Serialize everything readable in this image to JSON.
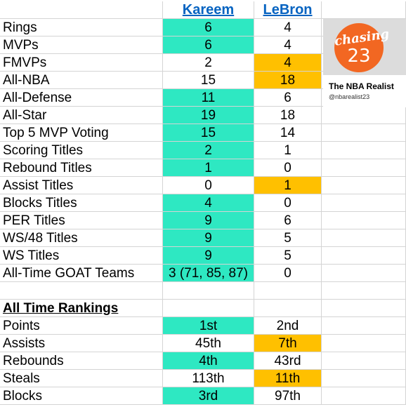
{
  "header": {
    "kareem": "Kareem",
    "lebron": "LeBron"
  },
  "stats": [
    {
      "label": "Rings",
      "kareem": "6",
      "lebron": "4",
      "k_hl": "teal",
      "l_hl": ""
    },
    {
      "label": "MVPs",
      "kareem": "6",
      "lebron": "4",
      "k_hl": "teal",
      "l_hl": ""
    },
    {
      "label": "FMVPs",
      "kareem": "2",
      "lebron": "4",
      "k_hl": "",
      "l_hl": "gold"
    },
    {
      "label": "All-NBA",
      "kareem": "15",
      "lebron": "18",
      "k_hl": "",
      "l_hl": "gold"
    },
    {
      "label": "All-Defense",
      "kareem": "11",
      "lebron": "6",
      "k_hl": "teal",
      "l_hl": ""
    },
    {
      "label": "All-Star",
      "kareem": "19",
      "lebron": "18",
      "k_hl": "teal",
      "l_hl": ""
    },
    {
      "label": "Top 5 MVP Voting",
      "kareem": "15",
      "lebron": "14",
      "k_hl": "teal",
      "l_hl": ""
    },
    {
      "label": "Scoring Titles",
      "kareem": "2",
      "lebron": "1",
      "k_hl": "teal",
      "l_hl": ""
    },
    {
      "label": "Rebound Titles",
      "kareem": "1",
      "lebron": "0",
      "k_hl": "teal",
      "l_hl": ""
    },
    {
      "label": "Assist Titles",
      "kareem": "0",
      "lebron": "1",
      "k_hl": "",
      "l_hl": "gold"
    },
    {
      "label": "Blocks Titles",
      "kareem": "4",
      "lebron": "0",
      "k_hl": "teal",
      "l_hl": ""
    },
    {
      "label": "PER Titles",
      "kareem": "9",
      "lebron": "6",
      "k_hl": "teal",
      "l_hl": ""
    },
    {
      "label": "WS/48 Titles",
      "kareem": "9",
      "lebron": "5",
      "k_hl": "teal",
      "l_hl": ""
    },
    {
      "label": "WS Titles",
      "kareem": "9",
      "lebron": "5",
      "k_hl": "teal",
      "l_hl": ""
    },
    {
      "label": "All-Time GOAT Teams",
      "kareem": "3 (71, 85, 87)",
      "lebron": "0",
      "k_hl": "teal",
      "l_hl": ""
    }
  ],
  "rankings_title": "All Time Rankings",
  "rankings": [
    {
      "label": "Points",
      "kareem": "1st",
      "lebron": "2nd",
      "k_hl": "teal",
      "l_hl": ""
    },
    {
      "label": "Assists",
      "kareem": "45th",
      "lebron": "7th",
      "k_hl": "",
      "l_hl": "gold"
    },
    {
      "label": "Rebounds",
      "kareem": "4th",
      "lebron": "43rd",
      "k_hl": "teal",
      "l_hl": ""
    },
    {
      "label": "Steals",
      "kareem": "113th",
      "lebron": "11th",
      "k_hl": "",
      "l_hl": "gold"
    },
    {
      "label": "Blocks",
      "kareem": "3rd",
      "lebron": "97th",
      "k_hl": "teal",
      "l_hl": ""
    }
  ],
  "logo": {
    "word": "chasing",
    "number": "23",
    "brand": "The NBA Realist",
    "handle": "@nbarealist23"
  },
  "colors": {
    "teal": "#2ee8c2",
    "gold": "#ffc000",
    "link": "#0563c1",
    "logo_orange": "#f26722"
  }
}
